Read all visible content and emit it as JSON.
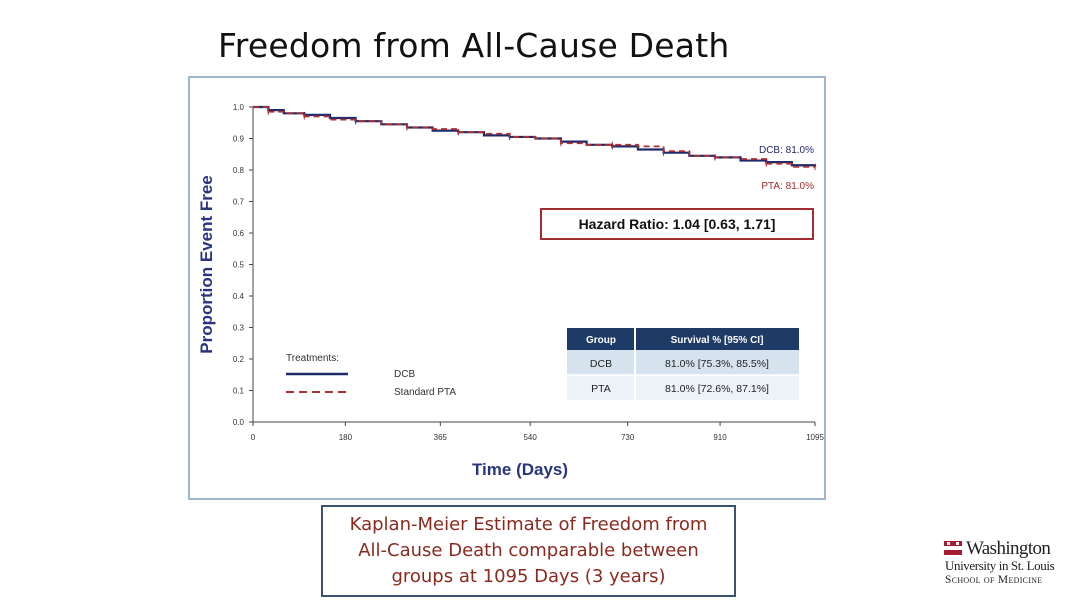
{
  "slide": {
    "title": "Freedom from All-Cause Death",
    "caption_lines": [
      "Kaplan-Meier Estimate of Freedom from",
      "All-Cause Death comparable between",
      "groups at 1095 Days (3 years)"
    ]
  },
  "logo": {
    "line1": "Washington",
    "line2": "University in St. Louis",
    "line3": "School of Medicine",
    "icon": "university-crest-icon"
  },
  "chart_data": {
    "type": "line",
    "xlabel": "Time (Days)",
    "ylabel": "Proportion Event Free",
    "xlim": [
      0,
      1095
    ],
    "ylim": [
      0,
      1.0
    ],
    "x_ticks": [
      0,
      180,
      365,
      540,
      730,
      910,
      1095
    ],
    "y_ticks": [
      0.0,
      0.1,
      0.2,
      0.3,
      0.4,
      0.5,
      0.6,
      0.7,
      0.8,
      0.9,
      1.0
    ],
    "grid": false,
    "legend": {
      "title": "Treatments:",
      "placement": "bottom-left"
    },
    "series": [
      {
        "name": "DCB",
        "style": "solid",
        "color": "#1f2a6b",
        "end_label": "DCB: 81.0%",
        "x": [
          0,
          30,
          60,
          100,
          150,
          200,
          250,
          300,
          350,
          400,
          450,
          500,
          550,
          600,
          650,
          700,
          750,
          800,
          850,
          900,
          950,
          1000,
          1050,
          1095
        ],
        "y": [
          1.0,
          0.99,
          0.98,
          0.975,
          0.965,
          0.955,
          0.945,
          0.935,
          0.925,
          0.92,
          0.91,
          0.905,
          0.9,
          0.89,
          0.88,
          0.875,
          0.865,
          0.855,
          0.845,
          0.84,
          0.83,
          0.825,
          0.815,
          0.81
        ]
      },
      {
        "name": "Standard PTA",
        "style": "dashed",
        "color": "#b03030",
        "end_label": "PTA: 81.0%",
        "x": [
          0,
          30,
          60,
          100,
          150,
          200,
          250,
          300,
          350,
          400,
          450,
          500,
          550,
          600,
          650,
          700,
          750,
          800,
          850,
          900,
          950,
          1000,
          1050,
          1095
        ],
        "y": [
          1.0,
          0.985,
          0.98,
          0.97,
          0.96,
          0.955,
          0.945,
          0.935,
          0.93,
          0.92,
          0.915,
          0.905,
          0.9,
          0.885,
          0.88,
          0.88,
          0.875,
          0.86,
          0.845,
          0.84,
          0.835,
          0.82,
          0.81,
          0.81
        ]
      }
    ],
    "annotation": "Hazard Ratio: 1.04 [0.63, 1.71]",
    "table": {
      "headers": [
        "Group",
        "Survival % [95% CI]"
      ],
      "rows": [
        [
          "DCB",
          "81.0% [75.3%, 85.5%]"
        ],
        [
          "PTA",
          "81.0% [72.6%, 87.1%]"
        ]
      ]
    }
  }
}
